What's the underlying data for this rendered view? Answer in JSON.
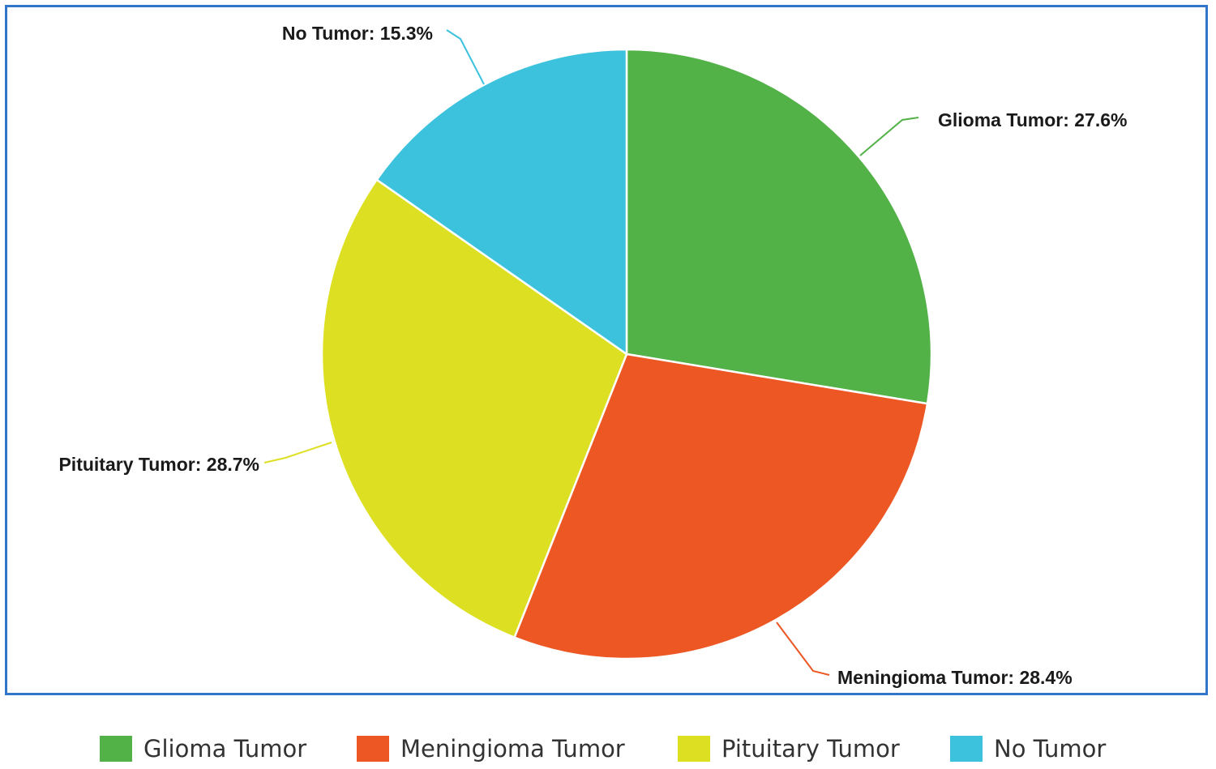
{
  "chart_data": {
    "type": "pie",
    "categories": [
      "Glioma Tumor",
      "Meningioma Tumor",
      "Pituitary Tumor",
      "No Tumor"
    ],
    "values": [
      27.6,
      28.4,
      28.7,
      15.3
    ],
    "value_unit": "%",
    "slice_labels": [
      "Glioma Tumor: 27.6%",
      "Meningioma Tumor: 28.4%",
      "Pituitary Tumor: 28.7%",
      "No Tumor: 15.3%"
    ],
    "colors": [
      "#52b247",
      "#ec5724",
      "#dde022",
      "#3cc2dd"
    ],
    "start_angle": "12 o'clock",
    "direction": "clockwise",
    "legend_placement": "bottom",
    "legend": [
      {
        "label": "Glioma Tumor",
        "color": "#52b247"
      },
      {
        "label": "Meningioma Tumor",
        "color": "#ec5724"
      },
      {
        "label": "Pituitary Tumor",
        "color": "#dde022"
      },
      {
        "label": "No Tumor",
        "color": "#3cc2dd"
      }
    ]
  },
  "frame_border_color": "#2f76c8"
}
